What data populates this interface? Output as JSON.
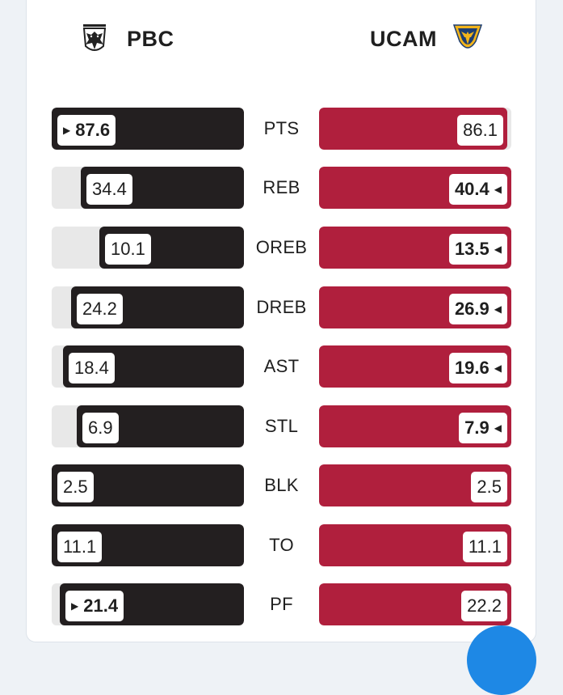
{
  "home": {
    "name": "PBC",
    "logo_icon": "paok-crest-icon"
  },
  "away": {
    "name": "UCAM",
    "logo_icon": "ucam-shield-icon"
  },
  "colors": {
    "home": "#231f20",
    "away": "#b01f3d",
    "track": "#e8e8e8",
    "fab": "#1e88e5"
  },
  "max_value": 100,
  "stats": [
    {
      "label": "PTS",
      "home": "87.6",
      "away": "86.1",
      "leader": "home",
      "home_fill": 100,
      "away_fill": 98
    },
    {
      "label": "REB",
      "home": "34.4",
      "away": "40.4",
      "leader": "away",
      "home_fill": 85,
      "away_fill": 100
    },
    {
      "label": "OREB",
      "home": "10.1",
      "away": "13.5",
      "leader": "away",
      "home_fill": 75,
      "away_fill": 100
    },
    {
      "label": "DREB",
      "home": "24.2",
      "away": "26.9",
      "leader": "away",
      "home_fill": 90,
      "away_fill": 100
    },
    {
      "label": "AST",
      "home": "18.4",
      "away": "19.6",
      "leader": "away",
      "home_fill": 94,
      "away_fill": 100
    },
    {
      "label": "STL",
      "home": "6.9",
      "away": "7.9",
      "leader": "away",
      "home_fill": 87,
      "away_fill": 100
    },
    {
      "label": "BLK",
      "home": "2.5",
      "away": "2.5",
      "leader": "none",
      "home_fill": 100,
      "away_fill": 100
    },
    {
      "label": "TO",
      "home": "11.1",
      "away": "11.1",
      "leader": "none",
      "home_fill": 100,
      "away_fill": 100
    },
    {
      "label": "PF",
      "home": "21.4",
      "away": "22.2",
      "leader": "home",
      "home_fill": 96,
      "away_fill": 100
    }
  ]
}
